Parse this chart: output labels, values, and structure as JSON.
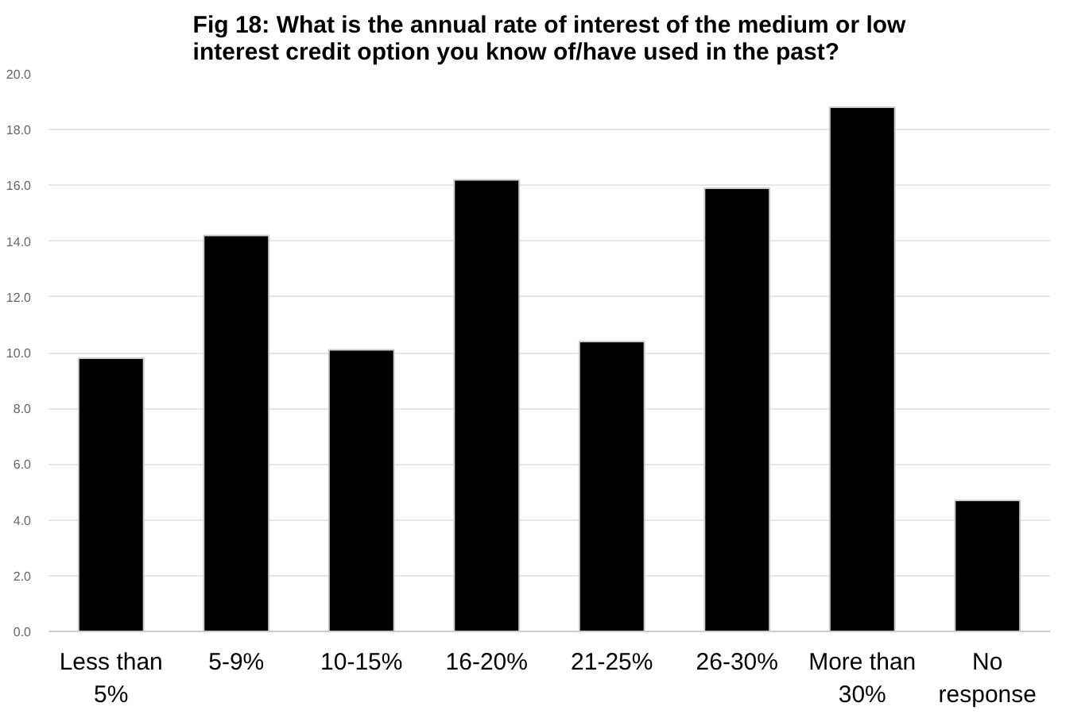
{
  "chart_data": {
    "type": "bar",
    "title": "Fig 18: What is the annual rate of interest of the medium or low interest credit option you know of/have used in the past?",
    "categories": [
      "Less than 5%",
      "5-9%",
      "10-15%",
      "16-20%",
      "21-25%",
      "26-30%",
      "More than 30%",
      "No response"
    ],
    "values": [
      9.8,
      14.2,
      10.1,
      16.2,
      10.4,
      15.9,
      18.8,
      4.7
    ],
    "color": "#000000",
    "ylim": [
      0,
      20
    ],
    "yticks": [
      {
        "value": 0,
        "label": "0.0"
      },
      {
        "value": 2,
        "label": "2.0"
      },
      {
        "value": 4,
        "label": "4.0"
      },
      {
        "value": 6,
        "label": "6.0"
      },
      {
        "value": 8,
        "label": "8.0"
      },
      {
        "value": 10,
        "label": "10.0"
      },
      {
        "value": 12,
        "label": "12.0"
      },
      {
        "value": 14,
        "label": "14.0"
      },
      {
        "value": 16,
        "label": "16.0"
      },
      {
        "value": 18,
        "label": "18.0"
      },
      {
        "value": 20,
        "label": "20.0"
      }
    ],
    "grid": "y"
  }
}
